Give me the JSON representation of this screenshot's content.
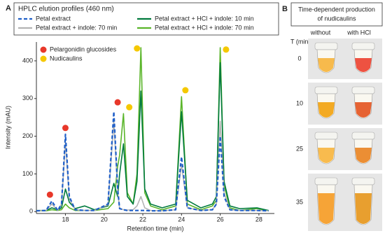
{
  "chart_data": {
    "type": "line",
    "panel_label": "A",
    "title": "HPLC elution profiles (460 nm)",
    "x_label": "Retention time (min)",
    "y_label": "Intensity (mAU)",
    "x": [
      16.5,
      17.0,
      17.3,
      17.6,
      17.8,
      18.0,
      18.2,
      18.5,
      19.0,
      19.5,
      20.2,
      20.5,
      20.7,
      20.8,
      21.0,
      21.2,
      21.5,
      21.7,
      21.9,
      22.1,
      22.4,
      23.0,
      23.7,
      24.0,
      24.3,
      25.0,
      25.6,
      25.8,
      26.0,
      26.2,
      26.5,
      27.0,
      27.9,
      28.5
    ],
    "series": [
      {
        "name": "Petal extract",
        "color": "#1f5fc8",
        "line_style": "dashed",
        "values": [
          2,
          3,
          28,
          3,
          20,
          205,
          40,
          5,
          3,
          3,
          20,
          265,
          60,
          8,
          5,
          3,
          3,
          3,
          3,
          3,
          2,
          2,
          5,
          145,
          10,
          3,
          5,
          20,
          200,
          40,
          5,
          3,
          3,
          2
        ]
      },
      {
        "name": "Petal extract + indole: 70 min",
        "color": "#b4b4b4",
        "line_style": "solid",
        "values": [
          2,
          3,
          20,
          3,
          20,
          185,
          35,
          5,
          3,
          3,
          18,
          240,
          55,
          8,
          5,
          4,
          5,
          15,
          40,
          10,
          3,
          2,
          5,
          125,
          10,
          3,
          5,
          20,
          240,
          50,
          5,
          3,
          3,
          2
        ]
      },
      {
        "name": "Petal extract + HCl + indole: 10 min",
        "color": "#007a3d",
        "line_style": "solid",
        "values": [
          3,
          3,
          10,
          5,
          10,
          60,
          25,
          8,
          15,
          5,
          15,
          75,
          40,
          100,
          180,
          40,
          20,
          80,
          320,
          60,
          20,
          10,
          20,
          265,
          30,
          10,
          20,
          40,
          395,
          80,
          15,
          8,
          10,
          3
        ]
      },
      {
        "name": "Petal extract + HCl + indole: 70 min",
        "color": "#5ab52a",
        "line_style": "solid",
        "values": [
          2,
          2,
          5,
          3,
          5,
          20,
          10,
          3,
          3,
          3,
          8,
          25,
          120,
          150,
          260,
          50,
          20,
          100,
          435,
          50,
          15,
          5,
          15,
          305,
          20,
          5,
          15,
          30,
          435,
          70,
          10,
          3,
          8,
          2
        ]
      }
    ],
    "markers": [
      {
        "name": "Pelargonidin glucosides",
        "color": "#e8382a",
        "x": [
          17.2,
          18.0,
          20.7
        ],
        "y": [
          45,
          222,
          290
        ]
      },
      {
        "name": "Nudicaulins",
        "color": "#f5c800",
        "x": [
          21.3,
          21.7,
          24.2,
          26.3
        ],
        "y": [
          277,
          433,
          322,
          430
        ]
      }
    ],
    "xlim": [
      16.5,
      28.8
    ],
    "ylim": [
      -5,
      450
    ],
    "xticks": [
      18,
      20,
      22,
      24,
      26,
      28
    ],
    "yticks": [
      0,
      100,
      200,
      300,
      400
    ]
  },
  "panel_b": {
    "panel_label": "B",
    "title_lines": [
      "Time-dependent production",
      "of nudicaulins"
    ],
    "columns": [
      "without",
      "with HCl"
    ],
    "row_header": "T (min)",
    "rows": [
      "0",
      "10",
      "25",
      "35"
    ]
  }
}
